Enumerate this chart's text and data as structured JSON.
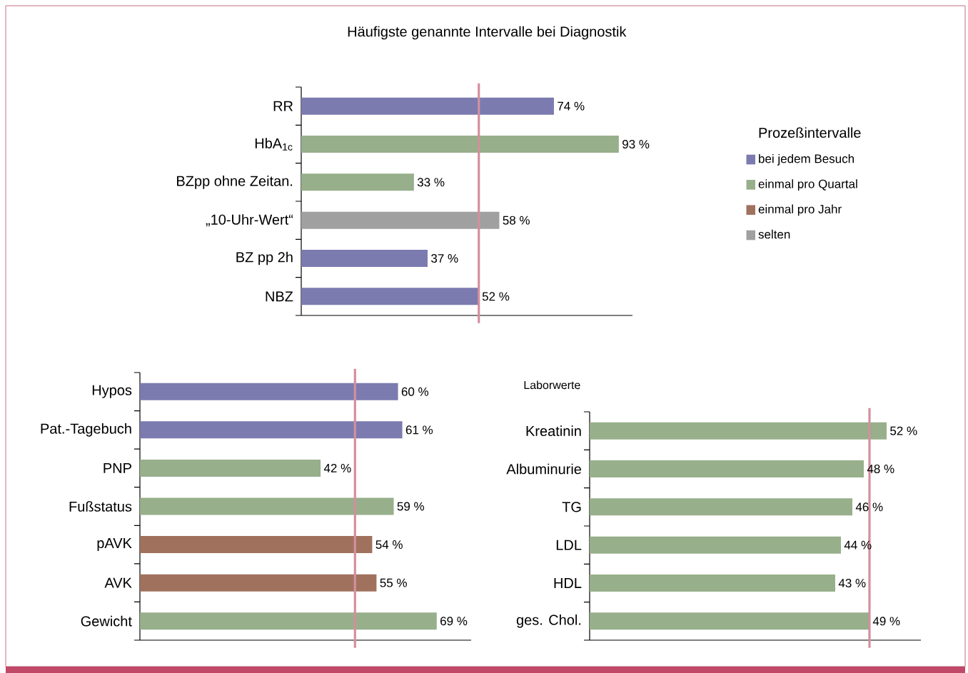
{
  "chart_data": [
    {
      "type": "bar",
      "orientation": "horizontal",
      "title": "Häufigste genannte Intervalle bei Diagnostik",
      "categories": [
        "RR",
        "HbA$_{1c}$",
        "BZpp ohne Zeitan.",
        "„10-Uhr-Wert“",
        "BZ pp 2h",
        "NBZ"
      ],
      "legend_title": "Prozeßintervalle",
      "legend": "right",
      "xlim": [
        0,
        97
      ],
      "series": [
        {
          "name": "bei jedem Besuch",
          "color": "#7b7bb0",
          "values": [
            74,
            null,
            null,
            null,
            37,
            52
          ],
          "value_labels": [
            "74 %",
            null,
            null,
            null,
            "37 %",
            "52 %"
          ]
        },
        {
          "name": "einmal pro Quartal",
          "color": "#97af8b",
          "values": [
            null,
            93,
            33,
            null,
            null,
            null
          ],
          "value_labels": [
            null,
            "93 %",
            "33 %",
            null,
            null,
            null
          ]
        },
        {
          "name": "einmal pro Jahr",
          "color": "#a0725e",
          "values": [
            null,
            null,
            null,
            null,
            null,
            null
          ],
          "value_labels": [
            null,
            null,
            null,
            null,
            null,
            null
          ]
        },
        {
          "name": "selten",
          "color": "#a0a0a0",
          "values": [
            null,
            null,
            null,
            58,
            null,
            null
          ],
          "value_labels": [
            null,
            null,
            null,
            "58 %",
            null,
            null
          ]
        }
      ],
      "ref_lines": [
        {
          "axis": "x",
          "value": 52,
          "color": "#d48f9e"
        }
      ]
    },
    {
      "type": "bar",
      "orientation": "horizontal",
      "categories": [
        "Hypos",
        "Pat.-Tagebuch",
        "PNP",
        "Fußstatus",
        "pAVK",
        "AVK",
        "Gewicht"
      ],
      "xlim": [
        0,
        77
      ],
      "series": [
        {
          "color": "#7b7bb0",
          "values": [
            60,
            61,
            null,
            null,
            null,
            null,
            null
          ],
          "value_labels": [
            "60 %",
            "61 %",
            null,
            null,
            null,
            null,
            null
          ]
        },
        {
          "color": "#97af8b",
          "values": [
            null,
            null,
            42,
            59,
            null,
            null,
            69
          ],
          "value_labels": [
            null,
            null,
            "42 %",
            "59 %",
            null,
            null,
            "69 %"
          ]
        },
        {
          "color": "#a0725e",
          "values": [
            null,
            null,
            null,
            null,
            54,
            55,
            null
          ],
          "value_labels": [
            null,
            null,
            null,
            null,
            "54 %",
            "55 %",
            null
          ]
        }
      ],
      "ref_lines": [
        {
          "axis": "x",
          "value": 50,
          "color": "#d48f9e"
        }
      ]
    },
    {
      "type": "bar",
      "orientation": "horizontal",
      "title": "Laborwerte",
      "categories": [
        "Kreatinin",
        "Albuminurie",
        "TG",
        "LDL",
        "HDL",
        "ges. Chol."
      ],
      "xlim": [
        0,
        58
      ],
      "series": [
        {
          "color": "#97af8b",
          "values": [
            52,
            48,
            46,
            44,
            43,
            49
          ],
          "value_labels": [
            "52 %",
            "48 %",
            "46 %",
            "44 %",
            "43 %",
            "49 %"
          ]
        }
      ],
      "ref_lines": [
        {
          "axis": "x",
          "value": 49,
          "color": "#d48f9e"
        }
      ]
    }
  ]
}
